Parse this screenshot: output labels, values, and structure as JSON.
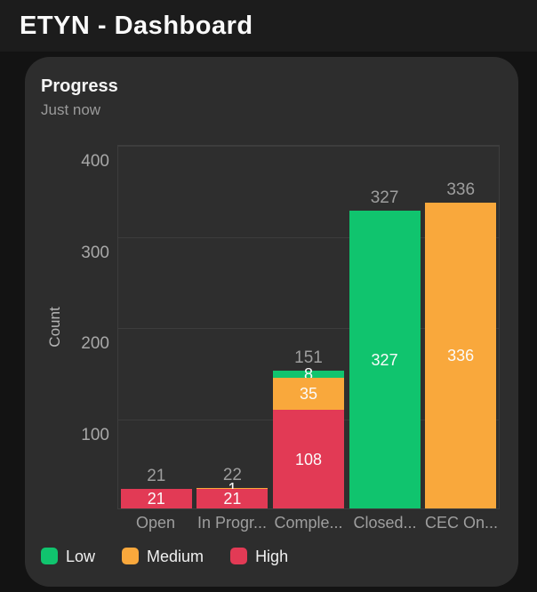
{
  "header": {
    "title": "ETYN -  Dashboard"
  },
  "card": {
    "title": "Progress",
    "subtitle": "Just now"
  },
  "colors": {
    "page_bg": "#131313",
    "header_bg": "#1c1c1c",
    "card_bg": "#2d2d2d",
    "grid": "#3d3d3d",
    "text_muted": "#9e9e9e",
    "low_green": "#10c46e",
    "medium_orange": "#f9a83c",
    "high_red": "#e23a55"
  },
  "chart_data": {
    "type": "bar",
    "stacked": true,
    "title": "Progress",
    "categories": [
      "Open",
      "In Progr...",
      "Comple...",
      "Closed...",
      "CEC On..."
    ],
    "series": [
      {
        "name": "Low",
        "color": "#10c46e",
        "values": [
          0,
          0,
          8,
          327,
          0
        ]
      },
      {
        "name": "Medium",
        "color": "#f9a83c",
        "values": [
          0,
          1,
          35,
          0,
          336
        ]
      },
      {
        "name": "High",
        "color": "#e23a55",
        "values": [
          21,
          21,
          108,
          0,
          0
        ]
      }
    ],
    "totals": [
      21,
      22,
      151,
      327,
      336
    ],
    "xlabel": "",
    "ylabel": "Count",
    "ylim": [
      0,
      400
    ],
    "yticks": [
      100,
      200,
      300,
      400
    ],
    "grid": true,
    "value_labels": "segment-and-total",
    "legend_position": "bottom",
    "legend": [
      {
        "label": "Low",
        "color": "#10c46e"
      },
      {
        "label": "Medium",
        "color": "#f9a83c"
      },
      {
        "label": "High",
        "color": "#e23a55"
      }
    ]
  }
}
